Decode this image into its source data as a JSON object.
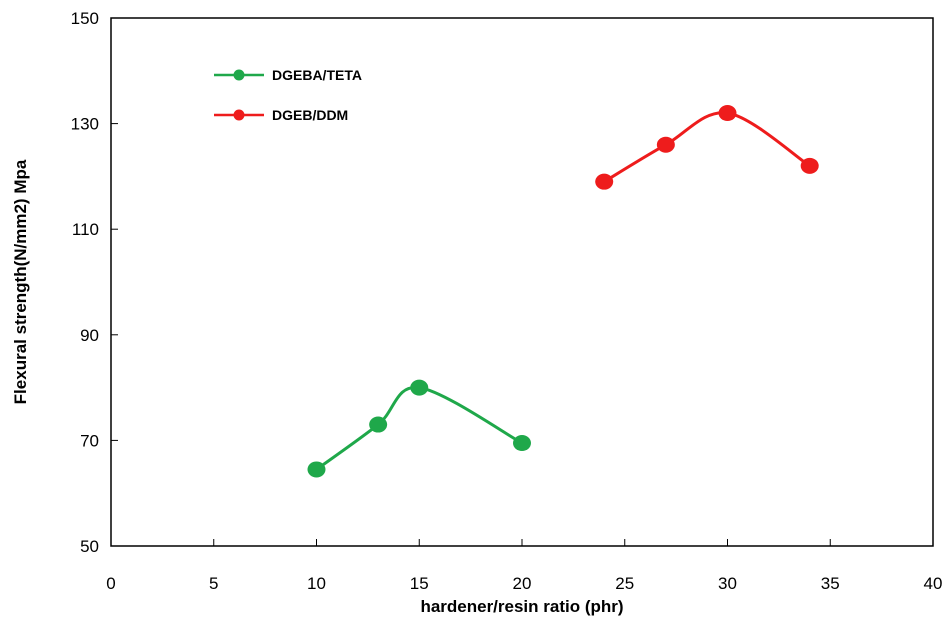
{
  "chart_data": {
    "type": "line",
    "xlabel": "hardener/resin ratio (phr)",
    "ylabel": "Flexural strength(N/mm2) Mpa",
    "xlim": [
      0,
      40
    ],
    "ylim": [
      50,
      150
    ],
    "x_ticks": [
      "0",
      "5",
      "10",
      "15",
      "20",
      "25",
      "30",
      "35",
      "40"
    ],
    "y_ticks": [
      "50",
      "70",
      "90",
      "110",
      "130",
      "150"
    ],
    "grid": false,
    "legend_position": "top-left",
    "series": [
      {
        "name": "DGEBA/TETA",
        "color": "#1fa84a",
        "x": [
          10,
          13,
          15,
          20
        ],
        "y": [
          64.5,
          73,
          80,
          69.5
        ]
      },
      {
        "name": "DGEB/DDM",
        "color": "#ee1c1c",
        "x": [
          24,
          27,
          30,
          34
        ],
        "y": [
          119,
          126,
          132,
          122
        ]
      }
    ]
  }
}
